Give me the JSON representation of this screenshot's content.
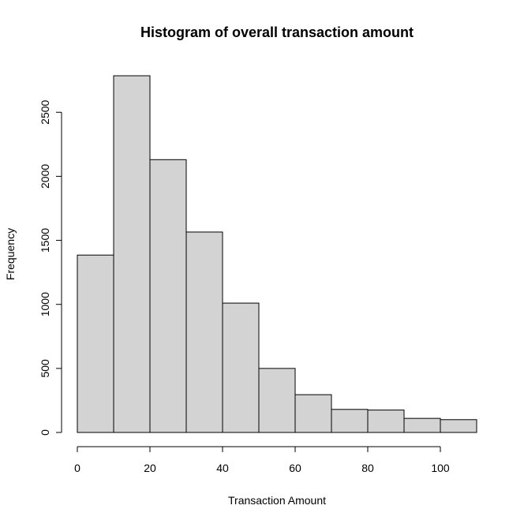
{
  "chart_data": {
    "type": "bar",
    "title": "Histogram of overall transaction amount",
    "xlabel": "Transaction Amount",
    "ylabel": "Frequency",
    "bin_edges": [
      0,
      10,
      20,
      30,
      40,
      50,
      60,
      70,
      80,
      90,
      100,
      110
    ],
    "values": [
      1385,
      2785,
      2130,
      1565,
      1010,
      500,
      295,
      180,
      175,
      110,
      100
    ],
    "x_ticks": [
      0,
      20,
      40,
      60,
      80,
      100
    ],
    "y_ticks": [
      0,
      500,
      1000,
      1500,
      2000,
      2500
    ],
    "xlim": [
      0,
      110
    ],
    "ylim": [
      0,
      2785
    ],
    "grid": false,
    "colors": {
      "bar_fill": "#d3d3d3",
      "bar_stroke": "#000000"
    }
  }
}
